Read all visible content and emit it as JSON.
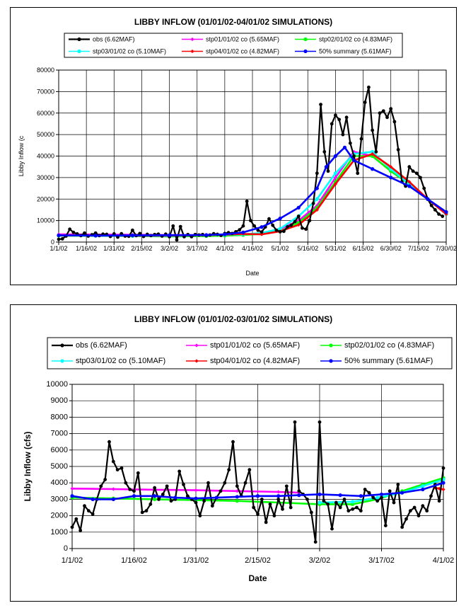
{
  "chart_data": [
    {
      "type": "line",
      "title": "LIBBY INFLOW (01/01/02-04/01/02 SIMULATIONS)",
      "xlabel": "Date",
      "ylabel": "Libby Inflow (c",
      "xlim": [
        0,
        210
      ],
      "ylim": [
        0,
        80000
      ],
      "yticks": [
        "0",
        "10000",
        "20000",
        "30000",
        "40000",
        "50000",
        "60000",
        "70000",
        "80000"
      ],
      "xticks": [
        "1/1/02",
        "1/16/02",
        "1/31/02",
        "2/15/02",
        "3/2/02",
        "3/17/02",
        "4/1/02",
        "4/16/02",
        "5/1/02",
        "5/16/02",
        "5/31/02",
        "6/15/02",
        "6/30/02",
        "7/15/02",
        "7/30/02"
      ],
      "legend": [
        "obs (6.62MAF)",
        "stp01/01/02 co (5.65MAF)",
        "stp02/01/02 co (4.83MAF)",
        "stp03/01/02 co (5.10MAF)",
        "stp04/01/02 co (4.82MAF)",
        "50% summary (5.61MAF)"
      ],
      "series": [
        {
          "name": "obs (6.62MAF)",
          "color": "#000000",
          "x": [
            0,
            2,
            4,
            6,
            8,
            10,
            12,
            14,
            16,
            18,
            20,
            22,
            24,
            26,
            28,
            30,
            32,
            34,
            36,
            38,
            40,
            42,
            44,
            46,
            48,
            50,
            52,
            54,
            56,
            58,
            60,
            62,
            64,
            66,
            68,
            70,
            72,
            74,
            76,
            78,
            80,
            82,
            84,
            86,
            88,
            90,
            92,
            94,
            96,
            98,
            100,
            102,
            104,
            106,
            108,
            110,
            112,
            114,
            116,
            118,
            120,
            122,
            124,
            126,
            128,
            130,
            132,
            134,
            136,
            138,
            140,
            142,
            144,
            146,
            148,
            150,
            152,
            154,
            156,
            158,
            160,
            162,
            164,
            166,
            168,
            170,
            172,
            174,
            176,
            178,
            180,
            182,
            184,
            186,
            188,
            190,
            192,
            194,
            196,
            198,
            200,
            202,
            204,
            206,
            208
          ],
          "y": [
            1300,
            1500,
            2800,
            6000,
            4500,
            3800,
            3000,
            4200,
            2800,
            3400,
            4200,
            3000,
            3700,
            3600,
            2600,
            3800,
            2300,
            3900,
            2800,
            2700,
            5500,
            3000,
            4000,
            2600,
            3600,
            3000,
            3500,
            3700,
            2800,
            3700,
            2500,
            7500,
            1000,
            7200,
            2500,
            3500,
            2500,
            3500,
            3300,
            3500,
            3000,
            3300,
            3900,
            3600,
            3100,
            4000,
            4400,
            4000,
            4800,
            5700,
            7500,
            19000,
            10000,
            7500,
            5500,
            4700,
            7000,
            10800,
            7800,
            5500,
            4800,
            5000,
            7100,
            7800,
            9500,
            12000,
            6500,
            6000,
            10000,
            18000,
            32000,
            64000,
            42000,
            33000,
            55000,
            59000,
            57000,
            50000,
            58000,
            46000,
            40000,
            32000,
            48000,
            65000,
            72000,
            52000,
            42000,
            60000,
            61000,
            58000,
            62000,
            56000,
            43000,
            28000,
            26000,
            35000,
            33000,
            32000,
            30000,
            25000,
            20000,
            17000,
            15000,
            13000,
            12000
          ]
        },
        {
          "name": "stp01/01/02 co (5.65MAF)",
          "color": "#ff00ff",
          "x": [
            0,
            20,
            40,
            60,
            80,
            90,
            100,
            110,
            120,
            130,
            140,
            150,
            160,
            170,
            180,
            190,
            200,
            210
          ],
          "y": [
            3600,
            3500,
            3400,
            3300,
            3200,
            3300,
            3500,
            4000,
            6000,
            10000,
            17000,
            30000,
            42000,
            40000,
            33000,
            27000,
            20000,
            13000
          ]
        },
        {
          "name": "stp02/01/02 co (4.83MAF)",
          "color": "#00ff00",
          "x": [
            0,
            20,
            40,
            60,
            80,
            90,
            100,
            110,
            120,
            130,
            140,
            150,
            160,
            170,
            180,
            190,
            200,
            210
          ],
          "y": [
            3000,
            2900,
            2800,
            2600,
            2800,
            3000,
            3300,
            3800,
            5000,
            9000,
            16000,
            28000,
            40000,
            40000,
            33000,
            27000,
            20000,
            13000
          ]
        },
        {
          "name": "stp03/01/02 co (5.10MAF)",
          "color": "#00ffff",
          "x": [
            0,
            20,
            40,
            60,
            80,
            90,
            100,
            110,
            120,
            130,
            140,
            150,
            160,
            170,
            180,
            190,
            200,
            210
          ],
          "y": [
            3100,
            3000,
            2900,
            2800,
            3200,
            3400,
            3600,
            4200,
            6200,
            12000,
            20000,
            32000,
            41000,
            42000,
            34000,
            27000,
            20000,
            13000
          ]
        },
        {
          "name": "stp04/01/02 co (4.82MAF)",
          "color": "#ff0000",
          "x": [
            0,
            20,
            40,
            60,
            80,
            90,
            100,
            110,
            120,
            130,
            140,
            150,
            160,
            170,
            180,
            190,
            200,
            210
          ],
          "y": [
            3100,
            3050,
            3000,
            3000,
            3200,
            3500,
            3800,
            3600,
            5000,
            8000,
            15000,
            27000,
            38000,
            41000,
            35000,
            28000,
            20000,
            13000
          ]
        },
        {
          "name": "50% summary (5.61MAF)",
          "color": "#0000ff",
          "x": [
            0,
            20,
            40,
            60,
            80,
            90,
            100,
            110,
            120,
            130,
            140,
            145,
            150,
            155,
            160,
            170,
            180,
            190,
            200,
            210
          ],
          "y": [
            3100,
            3000,
            3100,
            3200,
            3300,
            3600,
            4500,
            7000,
            11000,
            16000,
            25000,
            35000,
            40000,
            44000,
            38000,
            34000,
            30000,
            26000,
            20000,
            14000
          ]
        }
      ]
    },
    {
      "type": "line",
      "title": "LIBBY INFLOW (01/01/02-03/01/02 SIMULATIONS)",
      "xlabel": "Date",
      "ylabel": "Libby Inflow (cfs)",
      "xlim": [
        0,
        90
      ],
      "ylim": [
        0,
        10000
      ],
      "yticks": [
        "0",
        "1000",
        "2000",
        "3000",
        "4000",
        "5000",
        "6000",
        "7000",
        "8000",
        "9000",
        "10000"
      ],
      "xticks": [
        "1/1/02",
        "1/16/02",
        "1/31/02",
        "2/15/02",
        "3/2/02",
        "3/17/02",
        "4/1/02"
      ],
      "legend": [
        "obs (6.62MAF)",
        "stp01/01/02 co (5.65MAF)",
        "stp02/01/02 co (4.83MAF)",
        "stp03/01/02 co (5.10MAF)",
        "stp04/01/02 co (4.82MAF)",
        "50% summary (5.61MAF)"
      ],
      "series": [
        {
          "name": "obs (6.62MAF)",
          "color": "#000000",
          "x": [
            0,
            1,
            2,
            3,
            4,
            5,
            6,
            7,
            8,
            9,
            10,
            11,
            12,
            13,
            14,
            15,
            16,
            17,
            18,
            19,
            20,
            21,
            22,
            23,
            24,
            25,
            26,
            27,
            28,
            29,
            30,
            31,
            32,
            33,
            34,
            35,
            36,
            37,
            38,
            39,
            40,
            41,
            42,
            43,
            44,
            45,
            46,
            47,
            48,
            49,
            50,
            51,
            52,
            53,
            54,
            55,
            56,
            57,
            58,
            59,
            60,
            61,
            62,
            63,
            64,
            65,
            66,
            67,
            68,
            69,
            70,
            71,
            72,
            73,
            74,
            75,
            76,
            77,
            78,
            79,
            80,
            81,
            82,
            83,
            84,
            85,
            86,
            87,
            88,
            89,
            90
          ],
          "y": [
            1300,
            1800,
            1100,
            2600,
            2300,
            2100,
            3000,
            3800,
            4200,
            6500,
            5300,
            4800,
            4900,
            4000,
            3600,
            3500,
            4600,
            2200,
            2300,
            2700,
            3700,
            3000,
            3300,
            3800,
            2900,
            3000,
            4700,
            3900,
            3200,
            3000,
            2800,
            2000,
            2900,
            4000,
            2600,
            3100,
            3500,
            4000,
            4800,
            6500,
            3800,
            3200,
            4000,
            4800,
            2500,
            2100,
            3000,
            1600,
            2700,
            2000,
            3000,
            2400,
            3800,
            2500,
            7700,
            3500,
            3300,
            3000,
            2200,
            400,
            7700,
            2900,
            2700,
            1200,
            2800,
            2500,
            3000,
            2300,
            2400,
            2500,
            2300,
            3600,
            3400,
            3100,
            2900,
            3100,
            1400,
            3500,
            2800,
            3900,
            1300,
            1800,
            2300,
            2500,
            2000,
            2600,
            2300,
            3200,
            3900,
            2900,
            4900
          ]
        },
        {
          "name": "stp01/01/02 co (5.65MAF)",
          "color": "#ff00ff",
          "x": [
            0,
            10,
            20,
            30,
            40,
            50,
            55
          ],
          "y": [
            3650,
            3620,
            3580,
            3550,
            3500,
            3450,
            3400
          ]
        },
        {
          "name": "stp02/01/02 co (4.83MAF)",
          "color": "#00ff00",
          "x": [
            0,
            10,
            20,
            30,
            40,
            50,
            60,
            68,
            74,
            80,
            85,
            90
          ],
          "y": [
            3100,
            3050,
            3000,
            2950,
            2900,
            2800,
            2700,
            2700,
            3000,
            3500,
            3900,
            4300
          ]
        },
        {
          "name": "stp03/01/02 co (5.10MAF)",
          "color": "#00ffff",
          "x": [
            60,
            68,
            74,
            80,
            85,
            90
          ],
          "y": [
            2800,
            2850,
            3100,
            3400,
            3800,
            4200
          ]
        },
        {
          "name": "stp04/01/02 co (4.82MAF)",
          "color": "#ff0000",
          "x": [
            88,
            89,
            90
          ],
          "y": [
            3700,
            3650,
            3600
          ]
        },
        {
          "name": "50% summary (5.61MAF)",
          "color": "#0000ff",
          "x": [
            0,
            5,
            10,
            15,
            20,
            25,
            30,
            35,
            40,
            45,
            50,
            55,
            60,
            65,
            70,
            75,
            80,
            85,
            90
          ],
          "y": [
            3200,
            3000,
            3000,
            3200,
            3200,
            3100,
            3050,
            3100,
            3150,
            3200,
            3200,
            3250,
            3300,
            3250,
            3200,
            3300,
            3400,
            3600,
            4000
          ]
        }
      ]
    }
  ]
}
